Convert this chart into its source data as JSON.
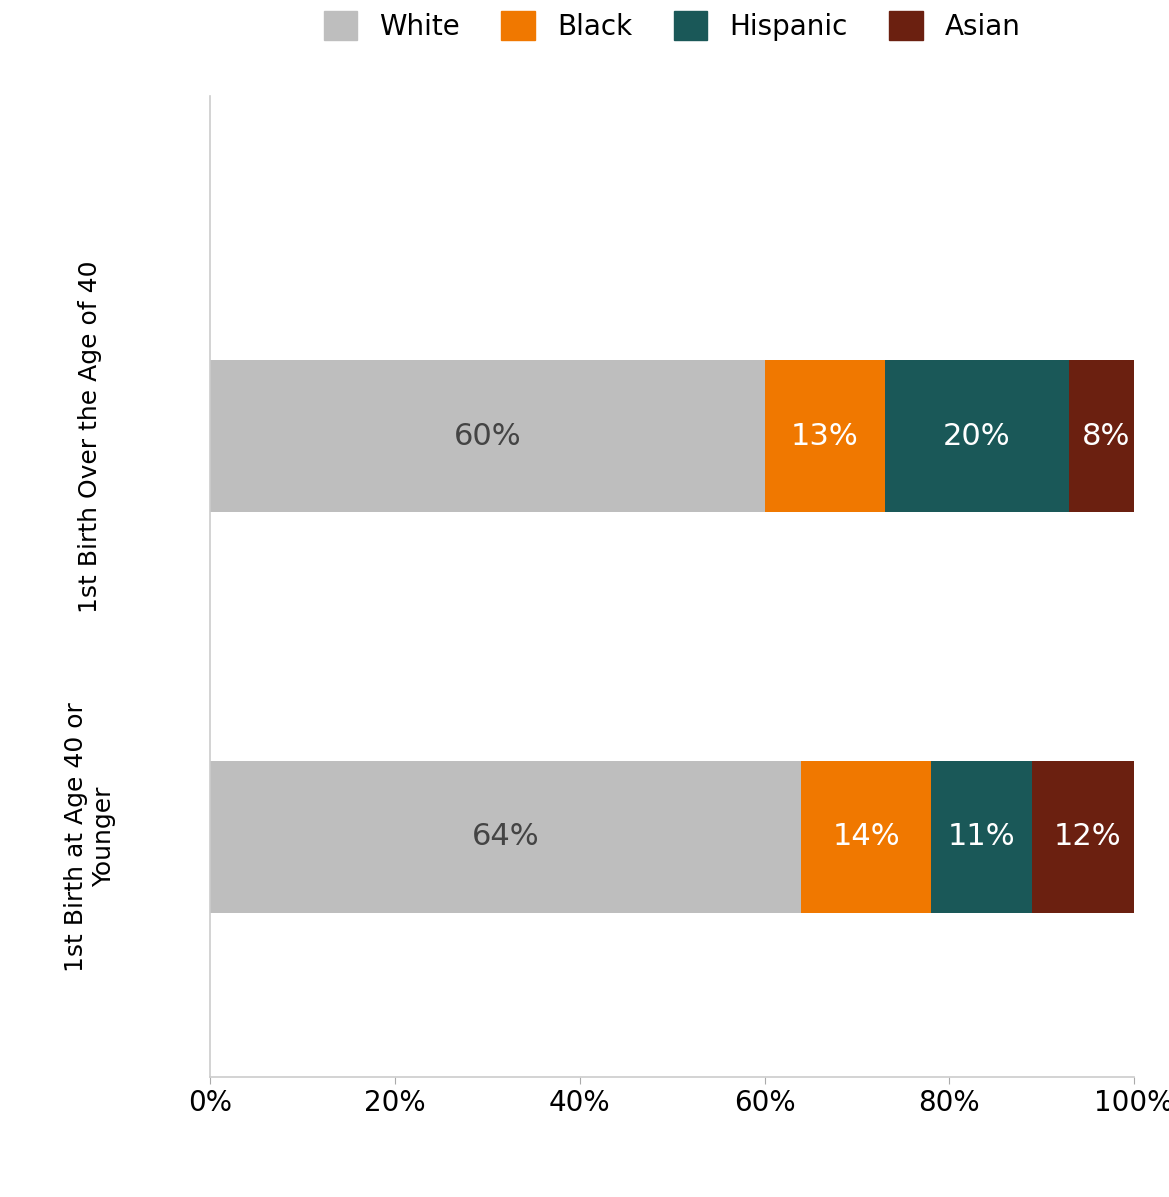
{
  "categories_top": "1st Birth Over the Age of 40",
  "categories_bottom": "1st Birth at Age 40 or\nYounger",
  "series": [
    {
      "label": "White",
      "color": "#BEBEBE",
      "values": [
        60,
        64
      ]
    },
    {
      "label": "Black",
      "color": "#F07800",
      "values": [
        13,
        14
      ]
    },
    {
      "label": "Hispanic",
      "color": "#1A5858",
      "values": [
        20,
        11
      ]
    },
    {
      "label": "Asian",
      "color": "#6B2010",
      "values": [
        8,
        12
      ]
    }
  ],
  "bar_label_colors": {
    "White": "#444444",
    "Black": "#ffffff",
    "Hispanic": "#ffffff",
    "Asian": "#ffffff"
  },
  "xlim": [
    0,
    100
  ],
  "xticks": [
    0,
    20,
    40,
    60,
    80,
    100
  ],
  "xticklabels": [
    "0%",
    "20%",
    "40%",
    "60%",
    "80%",
    "100%"
  ],
  "bar_height": 0.38,
  "figsize": [
    11.69,
    11.97
  ],
  "dpi": 100,
  "background_color": "#ffffff",
  "legend_fontsize": 20,
  "tick_fontsize": 20,
  "bar_label_fontsize": 22,
  "ylabel_fontsize": 18
}
